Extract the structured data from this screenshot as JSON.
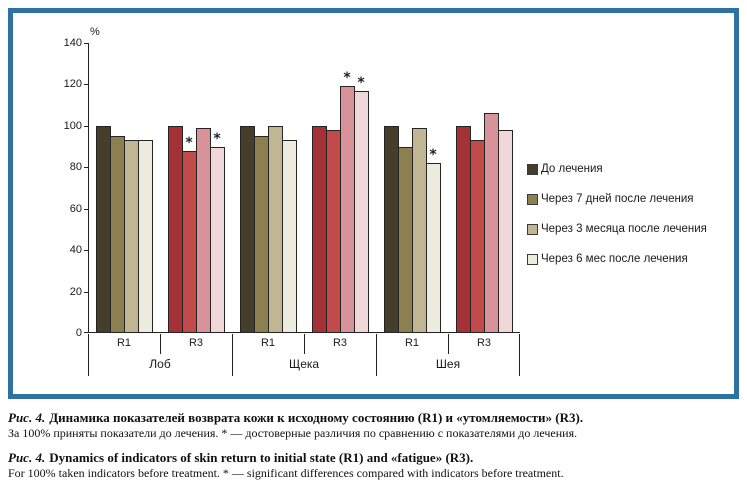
{
  "frame": {
    "border_color": "#2d72a3"
  },
  "chart_data": {
    "type": "bar",
    "title": "",
    "ylabel": "%",
    "ylim": [
      0,
      140
    ],
    "y_ticks": [
      0,
      20,
      40,
      60,
      80,
      100,
      120,
      140
    ],
    "grid": false,
    "legend_position": "right",
    "series_labels": [
      "До лечения",
      "Через 7 дней после лечения",
      "Через 3 месяца после лечения",
      "Через 6 мес после лечения"
    ],
    "palettes": {
      "olive": [
        "#463e2b",
        "#8c7f50",
        "#c0b694",
        "#edebde"
      ],
      "red": [
        "#a33136",
        "#c24b4a",
        "#d8939a",
        "#f0d8da"
      ]
    },
    "legend_palette": "olive",
    "star_symbol": "*",
    "regions": [
      {
        "label": "Лоб",
        "groups": [
          {
            "label": "R1",
            "palette": "olive",
            "values": [
              100,
              95,
              93,
              93
            ],
            "starred": []
          },
          {
            "label": "R3",
            "palette": "red",
            "values": [
              100,
              88,
              99,
              90
            ],
            "starred": [
              1,
              3
            ]
          }
        ]
      },
      {
        "label": "Щека",
        "groups": [
          {
            "label": "R1",
            "palette": "olive",
            "values": [
              100,
              95,
              100,
              93
            ],
            "starred": []
          },
          {
            "label": "R3",
            "palette": "red",
            "values": [
              100,
              98,
              119,
              117
            ],
            "starred": [
              2,
              3
            ]
          }
        ]
      },
      {
        "label": "Шея",
        "groups": [
          {
            "label": "R1",
            "palette": "olive",
            "values": [
              100,
              90,
              99,
              82
            ],
            "starred": [
              3
            ]
          },
          {
            "label": "R3",
            "palette": "red",
            "values": [
              100,
              93,
              106,
              98
            ],
            "starred": []
          }
        ]
      }
    ]
  },
  "caption": {
    "ru": {
      "prefix": "Рис. 4.",
      "title": "Динамика показателей возврата кожи к исходному состоянию (R1) и «утомляемости» (R3).",
      "note": "За 100% приняты показатели до лечения. * — достоверные различия по сравнению с показателями до лечения."
    },
    "en": {
      "prefix": "Рис. 4.",
      "title": "Dynamics of indicators of skin return to initial state (R1) and «fatigue» (R3).",
      "note": "For 100% taken indicators before treatment. * — significant differences compared with indicators before treatment."
    }
  }
}
